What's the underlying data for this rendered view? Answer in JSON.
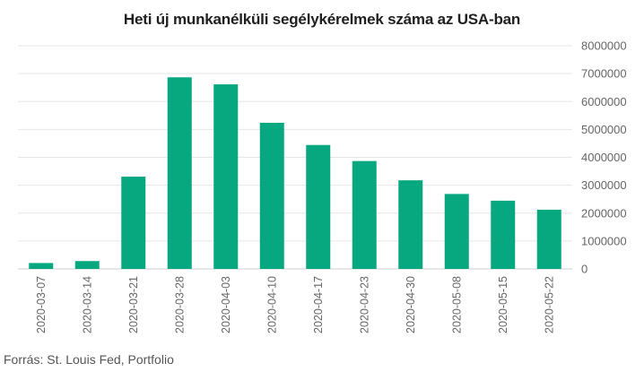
{
  "chart_data": {
    "type": "bar",
    "title": "Heti új munkanélküli segélykérelmek száma az USA-ban",
    "source": "Forrás: St. Louis Fed, Portfolio",
    "categories": [
      "2020-03-07",
      "2020-03-14",
      "2020-03-21",
      "2020-03-28",
      "2020-04-03",
      "2020-04-10",
      "2020-04-17",
      "2020-04-23",
      "2020-04-30",
      "2020-05-08",
      "2020-05-15",
      "2020-05-22"
    ],
    "values": [
      211000,
      282000,
      3307000,
      6867000,
      6615000,
      5237000,
      4442000,
      3867000,
      3176000,
      2687000,
      2446000,
      2123000
    ],
    "y_ticks": [
      0,
      1000000,
      2000000,
      3000000,
      4000000,
      5000000,
      6000000,
      7000000,
      8000000
    ],
    "ylim": [
      0,
      8000000
    ],
    "y_axis_side": "right",
    "grid": true,
    "bar_color": "#07a880",
    "grid_color": "#e6e6e6"
  }
}
